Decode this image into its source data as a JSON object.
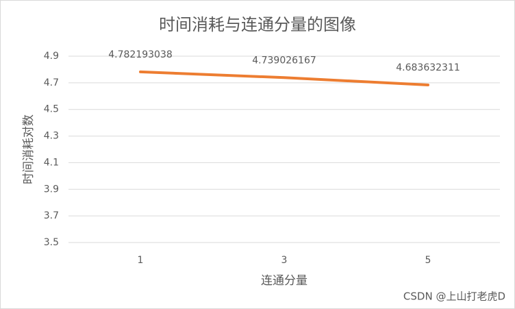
{
  "chart_data": {
    "type": "line",
    "title": "时间消耗与连通分量的图像",
    "x_label": "连通分量",
    "y_label": "时间消耗对数",
    "categories": [
      "1",
      "3",
      "5"
    ],
    "series": [
      {
        "name": "时间消耗对数",
        "color": "#ed7d31",
        "values": [
          4.782193038,
          4.739026167,
          4.683632311
        ]
      }
    ],
    "ylim": [
      3.5,
      4.9
    ],
    "yticks": [
      3.5,
      3.7,
      3.9,
      4.1,
      4.3,
      4.5,
      4.7,
      4.9
    ],
    "grid": true,
    "watermark": "CSDN @上山打老虎D"
  }
}
